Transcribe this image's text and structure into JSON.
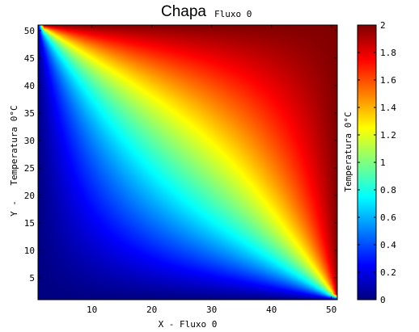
{
  "chart_data": [
    {
      "type": "heatmap",
      "title": "Chapa",
      "subtitle": "Fluxo 0",
      "xlabel": "X - Fluxo 0",
      "ylabel_prefix": "Y -",
      "ylabel": "Temperatura 0°C",
      "xlim": [
        1,
        51
      ],
      "ylim": [
        1,
        51
      ],
      "grid_size": 51,
      "x_ticks": [
        10,
        20,
        30,
        40,
        50
      ],
      "y_ticks": [
        5,
        10,
        15,
        20,
        25,
        30,
        35,
        40,
        45,
        50
      ],
      "boundary_conditions": {
        "top": 2,
        "right": 2,
        "left": 0,
        "bottom": 0
      },
      "colormap": "jet",
      "grid": false
    },
    {
      "type": "colorbar",
      "label": "Temperatura 0°C",
      "range": [
        0,
        2
      ],
      "ticks": [
        0,
        0.2,
        0.4,
        0.6,
        0.8,
        1,
        1.2,
        1.4,
        1.6,
        1.8,
        2
      ],
      "tick_labels": [
        "0",
        "0.2",
        "0.4",
        "0.6",
        "0.8",
        "1",
        "1.2",
        "1.4",
        "1.6",
        "1.8",
        "2"
      ]
    }
  ]
}
